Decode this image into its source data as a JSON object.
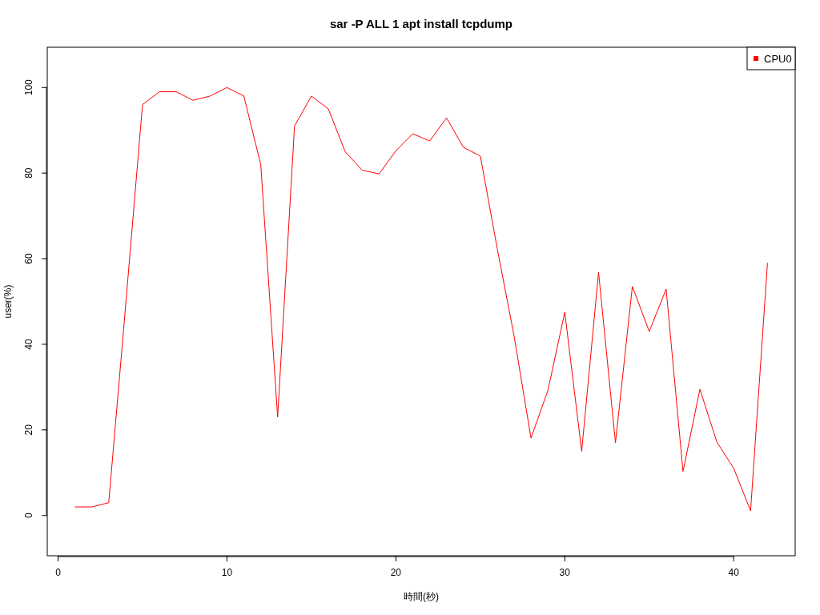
{
  "chart_data": {
    "type": "line",
    "title": "sar -P ALL 1 apt install tcpdump",
    "xlabel": "時間(秒)",
    "ylabel": "user(%)",
    "x": [
      1,
      2,
      3,
      4,
      5,
      6,
      7,
      8,
      9,
      10,
      11,
      12,
      13,
      14,
      15,
      16,
      17,
      18,
      19,
      20,
      21,
      22,
      23,
      24,
      25,
      26,
      27,
      28,
      29,
      30,
      31,
      32,
      33,
      34,
      35,
      36,
      37,
      38,
      39,
      40,
      41,
      42
    ],
    "series": [
      {
        "name": "CPU0",
        "color": "#ff0000",
        "values": [
          2,
          2,
          3,
          49,
          96,
          99,
          99,
          97,
          98,
          100,
          98,
          82,
          23,
          91,
          98,
          95,
          85,
          80.7,
          79.8,
          85.2,
          89.2,
          87.5,
          92.9,
          86,
          84,
          62.4,
          41.9,
          18.1,
          29.2,
          47.5,
          15,
          56.8,
          17,
          53.5,
          43,
          52.9,
          10.3,
          29.5,
          17.2,
          11,
          1.1,
          59
        ]
      }
    ],
    "xlim": [
      -0.64,
      43.64
    ],
    "ylim": [
      -9.4,
      109.4
    ],
    "xticks": [
      0,
      10,
      20,
      30,
      40
    ],
    "yticks": [
      0,
      20,
      40,
      60,
      80,
      100
    ],
    "legend": "top right"
  }
}
